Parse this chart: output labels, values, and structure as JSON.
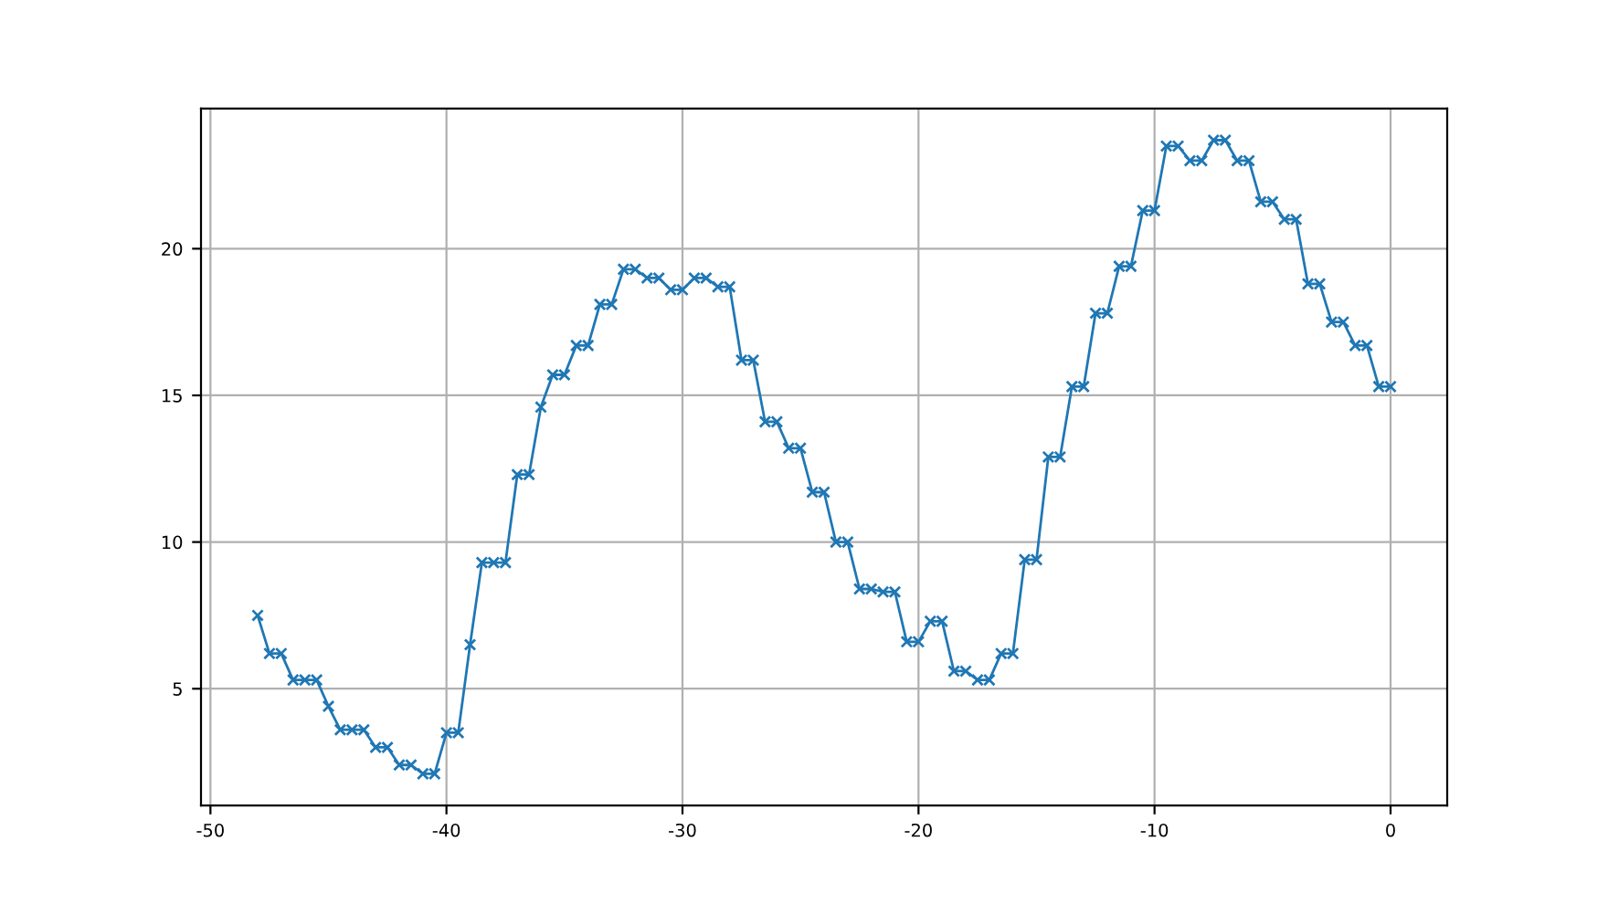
{
  "chart_data": {
    "type": "line",
    "x": [
      -48,
      -47.5,
      -47,
      -46.5,
      -46,
      -45.5,
      -45,
      -44.5,
      -44,
      -43.5,
      -43,
      -42.5,
      -42,
      -41.5,
      -41,
      -40.5,
      -40,
      -39.5,
      -39,
      -38.5,
      -38,
      -37.5,
      -37,
      -36.5,
      -36,
      -35.5,
      -35,
      -34.5,
      -34,
      -33.5,
      -33,
      -32.5,
      -32,
      -31.5,
      -31,
      -30.5,
      -30,
      -29.5,
      -29,
      -28.5,
      -28,
      -27.5,
      -27,
      -26.5,
      -26,
      -25.5,
      -25,
      -24.5,
      -24,
      -23.5,
      -23,
      -22.5,
      -22,
      -21.5,
      -21,
      -20.5,
      -20,
      -19.5,
      -19,
      -18.5,
      -18,
      -17.5,
      -17,
      -16.5,
      -16,
      -15.5,
      -15,
      -14.5,
      -14,
      -13.5,
      -13,
      -12.5,
      -12,
      -11.5,
      -11,
      -10.5,
      -10,
      -9.5,
      -9,
      -8.5,
      -8,
      -7.5,
      -7,
      -6.5,
      -6,
      -5.5,
      -5,
      -4.5,
      -4,
      -3.5,
      -3,
      -2.5,
      -2,
      -1.5,
      -1,
      -0.5,
      0
    ],
    "series": [
      {
        "color": "#1f77b4",
        "values": [
          7.5,
          6.2,
          6.2,
          5.3,
          5.3,
          5.3,
          4.4,
          3.6,
          3.6,
          3.6,
          3.0,
          3.0,
          2.4,
          2.4,
          2.1,
          2.1,
          3.5,
          3.5,
          6.5,
          9.3,
          9.3,
          9.3,
          12.3,
          12.3,
          14.6,
          15.7,
          15.7,
          16.7,
          16.7,
          18.1,
          18.1,
          19.3,
          19.3,
          19.0,
          19.0,
          18.6,
          18.6,
          19.0,
          19.0,
          18.7,
          18.7,
          16.2,
          16.2,
          14.1,
          14.1,
          13.2,
          13.2,
          11.7,
          11.7,
          10.0,
          10.0,
          8.4,
          8.4,
          8.3,
          8.3,
          6.6,
          6.6,
          7.3,
          7.3,
          5.6,
          5.6,
          5.3,
          5.3,
          6.2,
          6.2,
          9.4,
          9.4,
          12.9,
          12.9,
          15.3,
          15.3,
          17.8,
          17.8,
          19.4,
          19.4,
          21.3,
          21.3,
          23.5,
          23.5,
          23.0,
          23.0,
          23.7,
          23.7,
          23.0,
          23.0,
          21.6,
          21.6,
          21.0,
          21.0,
          18.8,
          18.8,
          17.5,
          17.5,
          16.7,
          16.7,
          15.3,
          15.3
        ]
      }
    ],
    "xlim": [
      -50.4,
      2.4
    ],
    "ylim": [
      1.02,
      24.78
    ],
    "xticks": [
      -50,
      -40,
      -30,
      -20,
      -10,
      0
    ],
    "yticks": [
      5,
      10,
      15,
      20
    ],
    "grid": true,
    "marker": "cross",
    "line_style": "solid",
    "legend": false
  }
}
